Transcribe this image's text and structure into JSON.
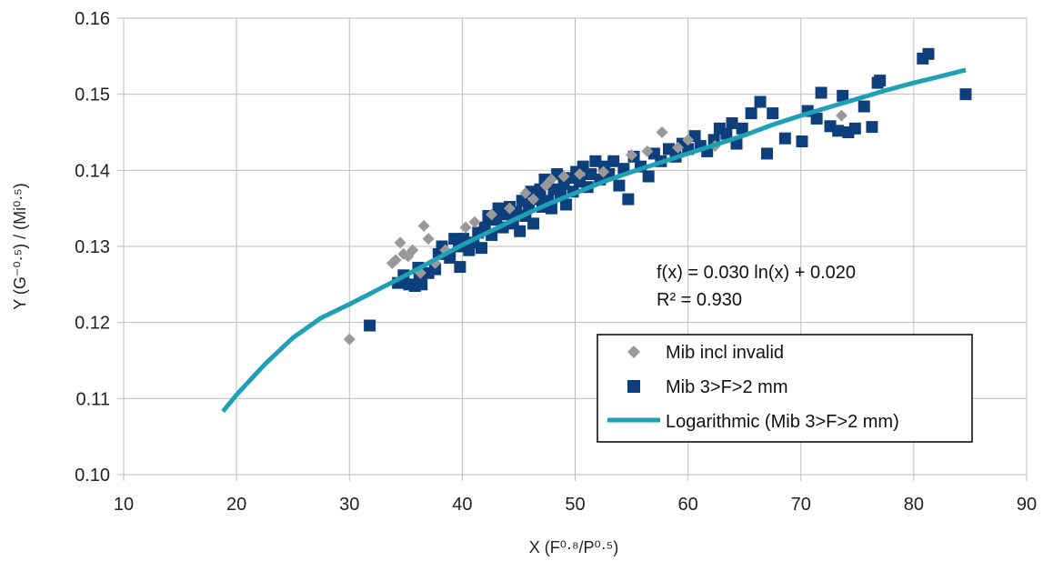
{
  "chart_data": {
    "type": "scatter",
    "xlabel": "X (F⁰·⁸/P⁰·⁵)",
    "ylabel": "Y (G⁻⁰·⁵) / (Mi⁰·⁵)",
    "xlim": [
      10,
      90
    ],
    "ylim": [
      0.1,
      0.16
    ],
    "x_ticks": [
      "10",
      "20",
      "30",
      "40",
      "50",
      "60",
      "70",
      "80",
      "90"
    ],
    "y_ticks": [
      "0.10",
      "0.11",
      "0.12",
      "0.13",
      "0.14",
      "0.15",
      "0.16"
    ],
    "grid": true,
    "legend_position": "bottom-right",
    "trendline_equation": "f(x) = 0.030 ln(x) + 0.020",
    "trendline_r2": "R² = 0.930",
    "series": [
      {
        "name": "Mib incl invalid",
        "marker": "diamond",
        "color": "#999999",
        "points": [
          [
            30.0,
            0.1178
          ],
          [
            33.8,
            0.1278
          ],
          [
            34.1,
            0.1282
          ],
          [
            34.5,
            0.1305
          ],
          [
            34.8,
            0.129
          ],
          [
            35.2,
            0.1287
          ],
          [
            35.6,
            0.1295
          ],
          [
            36.3,
            0.1265
          ],
          [
            36.6,
            0.1327
          ],
          [
            37.0,
            0.131
          ],
          [
            37.6,
            0.1278
          ],
          [
            38.5,
            0.1295
          ],
          [
            40.3,
            0.1325
          ],
          [
            41.1,
            0.1332
          ],
          [
            42.6,
            0.1342
          ],
          [
            44.2,
            0.135
          ],
          [
            45.6,
            0.137
          ],
          [
            46.3,
            0.1362
          ],
          [
            47.4,
            0.138
          ],
          [
            47.9,
            0.1388
          ],
          [
            49.0,
            0.1392
          ],
          [
            50.4,
            0.1395
          ],
          [
            52.5,
            0.1398
          ],
          [
            55.0,
            0.142
          ],
          [
            56.4,
            0.1425
          ],
          [
            57.7,
            0.145
          ],
          [
            59.1,
            0.143
          ],
          [
            60.0,
            0.144
          ],
          [
            62.4,
            0.1432
          ],
          [
            73.6,
            0.1472
          ]
        ]
      },
      {
        "name": "Mib 3>F>2 mm",
        "marker": "square",
        "color": "#0d3f7d",
        "points": [
          [
            31.8,
            0.1196
          ],
          [
            34.3,
            0.1252
          ],
          [
            34.8,
            0.1262
          ],
          [
            35.3,
            0.125
          ],
          [
            35.8,
            0.1248
          ],
          [
            36.2,
            0.1258
          ],
          [
            36.4,
            0.125
          ],
          [
            36.1,
            0.1272
          ],
          [
            37.0,
            0.1265
          ],
          [
            37.6,
            0.127
          ],
          [
            37.9,
            0.129
          ],
          [
            38.2,
            0.13
          ],
          [
            38.9,
            0.1285
          ],
          [
            39.3,
            0.131
          ],
          [
            39.7,
            0.13
          ],
          [
            39.8,
            0.1273
          ],
          [
            40.1,
            0.131
          ],
          [
            40.6,
            0.1295
          ],
          [
            41.0,
            0.1305
          ],
          [
            41.4,
            0.1318
          ],
          [
            41.7,
            0.1298
          ],
          [
            42.0,
            0.1325
          ],
          [
            42.3,
            0.134
          ],
          [
            42.6,
            0.1315
          ],
          [
            43.0,
            0.1335
          ],
          [
            43.2,
            0.135
          ],
          [
            43.6,
            0.1325
          ],
          [
            43.9,
            0.1342
          ],
          [
            44.2,
            0.1352
          ],
          [
            44.5,
            0.133
          ],
          [
            44.8,
            0.1345
          ],
          [
            45.1,
            0.132
          ],
          [
            45.3,
            0.136
          ],
          [
            45.6,
            0.134
          ],
          [
            45.9,
            0.1355
          ],
          [
            46.1,
            0.1372
          ],
          [
            46.3,
            0.133
          ],
          [
            46.6,
            0.1362
          ],
          [
            46.9,
            0.1375
          ],
          [
            47.1,
            0.1352
          ],
          [
            47.3,
            0.1388
          ],
          [
            47.6,
            0.136
          ],
          [
            47.9,
            0.135
          ],
          [
            48.1,
            0.1375
          ],
          [
            48.4,
            0.1395
          ],
          [
            48.7,
            0.1368
          ],
          [
            49.0,
            0.1382
          ],
          [
            49.2,
            0.1355
          ],
          [
            49.5,
            0.139
          ],
          [
            49.8,
            0.1372
          ],
          [
            50.1,
            0.1398
          ],
          [
            50.4,
            0.1385
          ],
          [
            50.7,
            0.1405
          ],
          [
            51.1,
            0.1378
          ],
          [
            51.4,
            0.1395
          ],
          [
            51.8,
            0.1412
          ],
          [
            52.2,
            0.1388
          ],
          [
            52.6,
            0.1405
          ],
          [
            53.0,
            0.1395
          ],
          [
            53.4,
            0.1412
          ],
          [
            53.9,
            0.138
          ],
          [
            54.3,
            0.1402
          ],
          [
            54.7,
            0.1362
          ],
          [
            55.2,
            0.1418
          ],
          [
            55.8,
            0.1405
          ],
          [
            56.5,
            0.1392
          ],
          [
            57.0,
            0.1422
          ],
          [
            57.6,
            0.1412
          ],
          [
            58.3,
            0.1428
          ],
          [
            58.9,
            0.1418
          ],
          [
            59.5,
            0.1435
          ],
          [
            60.0,
            0.1428
          ],
          [
            60.6,
            0.1445
          ],
          [
            61.1,
            0.1432
          ],
          [
            61.7,
            0.1425
          ],
          [
            62.3,
            0.144
          ],
          [
            62.8,
            0.1455
          ],
          [
            63.4,
            0.1448
          ],
          [
            63.9,
            0.1462
          ],
          [
            64.3,
            0.1435
          ],
          [
            64.8,
            0.1455
          ],
          [
            65.6,
            0.1475
          ],
          [
            66.4,
            0.149
          ],
          [
            67.0,
            0.1422
          ],
          [
            67.5,
            0.1475
          ],
          [
            68.6,
            0.1442
          ],
          [
            70.1,
            0.1438
          ],
          [
            70.6,
            0.1478
          ],
          [
            71.4,
            0.1468
          ],
          [
            71.8,
            0.1502
          ],
          [
            72.6,
            0.1458
          ],
          [
            73.3,
            0.1452
          ],
          [
            73.7,
            0.1498
          ],
          [
            74.2,
            0.145
          ],
          [
            74.8,
            0.1455
          ],
          [
            75.6,
            0.1484
          ],
          [
            76.3,
            0.1457
          ],
          [
            76.8,
            0.1515
          ],
          [
            77.0,
            0.1518
          ],
          [
            80.8,
            0.1547
          ],
          [
            81.3,
            0.1553
          ],
          [
            84.6,
            0.15
          ]
        ]
      }
    ],
    "trendline": {
      "name": "Logarithmic (Mib 3>F>2 mm)",
      "color": "#1fa0b4",
      "formula": "0.030*ln(x)+0.020",
      "x_range": [
        18.8,
        84.6
      ],
      "points": [
        [
          18.8,
          0.1083
        ],
        [
          20.0,
          0.1105
        ],
        [
          22.5,
          0.1145
        ],
        [
          25.0,
          0.118
        ],
        [
          27.5,
          0.1206
        ],
        [
          30.0,
          0.1224
        ],
        [
          32.5,
          0.1243
        ],
        [
          35.0,
          0.1262
        ],
        [
          37.5,
          0.1282
        ],
        [
          40.0,
          0.1302
        ],
        [
          42.5,
          0.132
        ],
        [
          45.0,
          0.1338
        ],
        [
          47.5,
          0.1355
        ],
        [
          50.0,
          0.137
        ],
        [
          52.5,
          0.1385
        ],
        [
          55.0,
          0.1398
        ],
        [
          57.5,
          0.141
        ],
        [
          60.0,
          0.1422
        ],
        [
          62.5,
          0.1434
        ],
        [
          65.0,
          0.1446
        ],
        [
          67.5,
          0.146
        ],
        [
          70.0,
          0.1472
        ],
        [
          72.5,
          0.1483
        ],
        [
          75.0,
          0.1494
        ],
        [
          77.5,
          0.1505
        ],
        [
          80.0,
          0.1515
        ],
        [
          82.5,
          0.1524
        ],
        [
          84.6,
          0.1532
        ]
      ]
    }
  }
}
